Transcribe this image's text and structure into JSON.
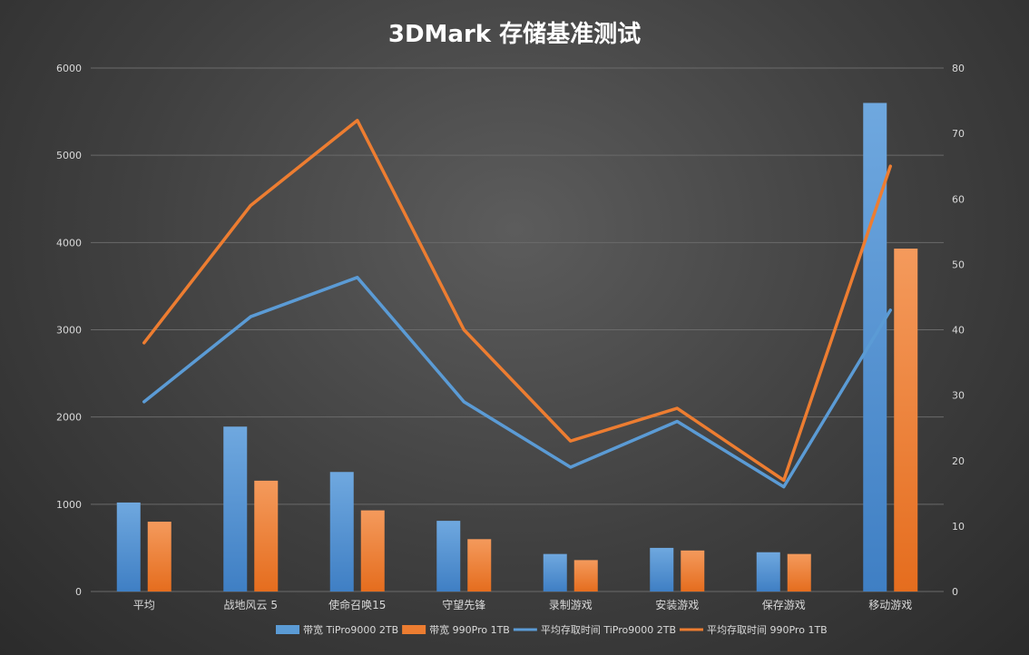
{
  "chart_data": {
    "type": "bar",
    "title": "3DMark 存储基准测试",
    "categories": [
      "平均",
      "战地风云 5",
      "使命召唤15",
      "守望先锋",
      "录制游戏",
      "安装游戏",
      "保存游戏",
      "移动游戏"
    ],
    "y_left": {
      "min": 0,
      "max": 6000,
      "ticks": [
        0,
        1000,
        2000,
        3000,
        4000,
        5000,
        6000
      ]
    },
    "y_right": {
      "min": 0,
      "max": 80,
      "ticks": [
        0,
        10,
        20,
        30,
        40,
        50,
        60,
        70,
        80
      ]
    },
    "grid": true,
    "legend_position": "bottom",
    "series": [
      {
        "name": "带宽 TiPro9000 2TB",
        "kind": "bar",
        "axis": "left",
        "color": "#5b9bd5",
        "values": [
          1020,
          1890,
          1370,
          810,
          430,
          500,
          450,
          5600
        ]
      },
      {
        "name": "带宽 990Pro 1TB",
        "kind": "bar",
        "axis": "left",
        "color": "#ed7d31",
        "values": [
          800,
          1270,
          930,
          600,
          360,
          470,
          430,
          3930
        ]
      },
      {
        "name": "平均存取时间 TiPro9000 2TB",
        "kind": "line",
        "axis": "right",
        "color": "#5b9bd5",
        "values": [
          29,
          42,
          48,
          29,
          19,
          26,
          16,
          43
        ]
      },
      {
        "name": "平均存取时间 990Pro 1TB",
        "kind": "line",
        "axis": "right",
        "color": "#ed7d31",
        "values": [
          38,
          59,
          72,
          40,
          23,
          28,
          17,
          65
        ]
      }
    ]
  }
}
